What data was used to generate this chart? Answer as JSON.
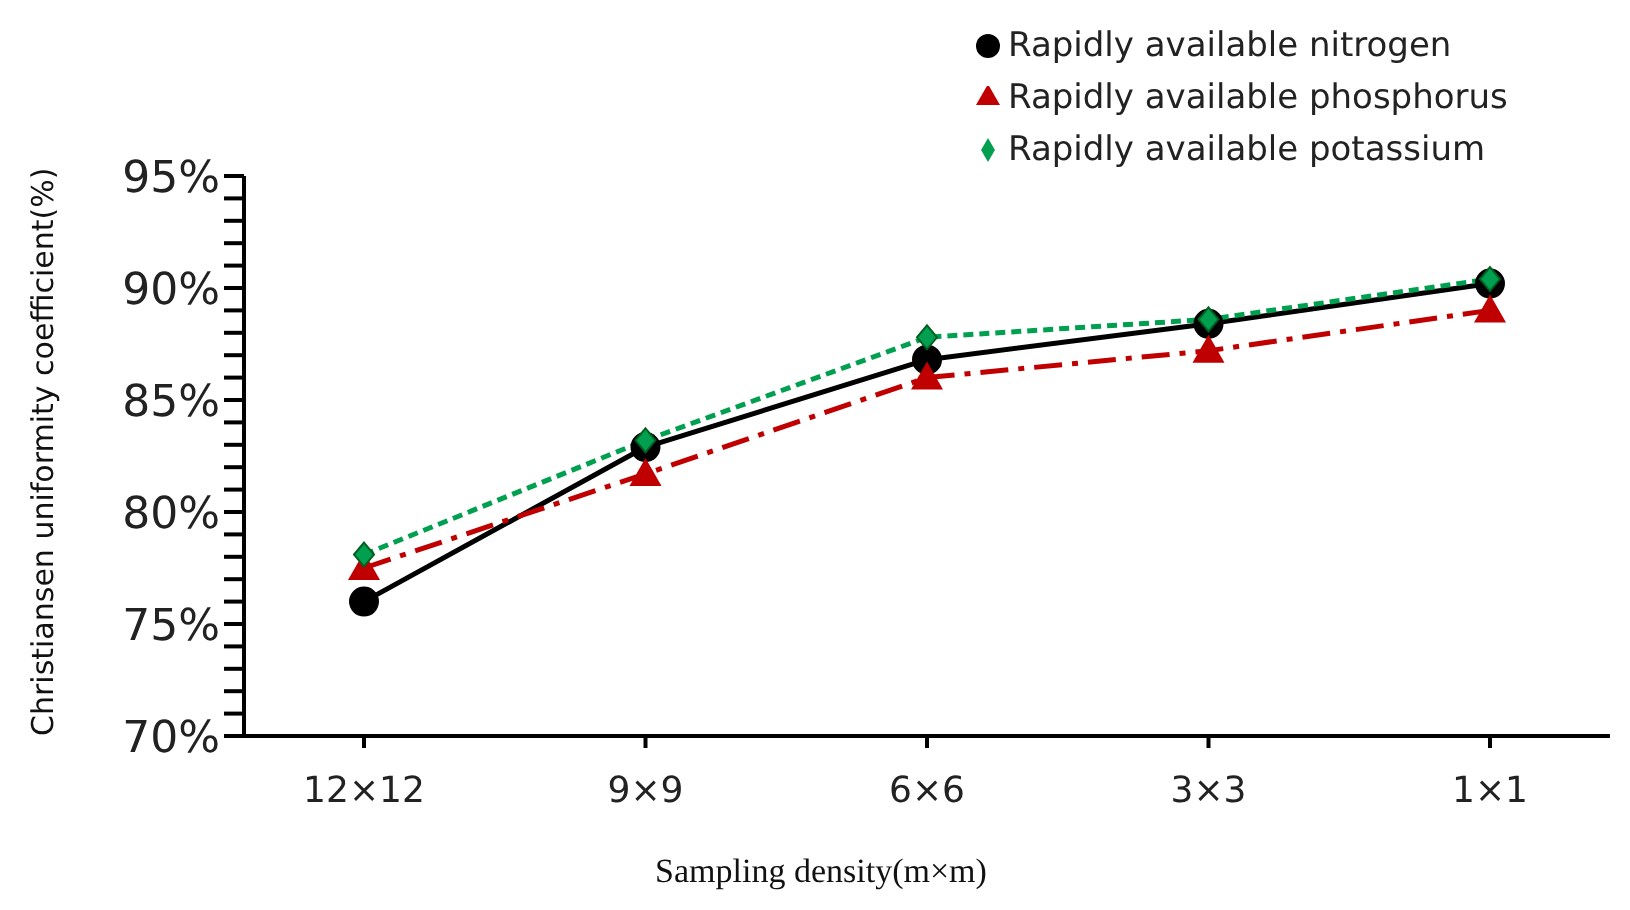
{
  "chart_data": {
    "type": "line",
    "xlabel": "Sampling density(m×m)",
    "ylabel": "Christiansen uniformity coefficient(%)",
    "categories": [
      "12×12",
      "9×9",
      "6×6",
      "3×3",
      "1×1"
    ],
    "series": [
      {
        "name": "Rapidly available nitrogen",
        "color": "#000000",
        "values": [
          76.0,
          82.9,
          86.8,
          88.4,
          90.2
        ],
        "marker": "circle",
        "line_style": "solid"
      },
      {
        "name": "Rapidly available phosphorus",
        "color": "#c00000",
        "values": [
          77.5,
          81.7,
          86.0,
          87.2,
          89.0
        ],
        "marker": "triangle",
        "line_style": "dashed"
      },
      {
        "name": "Rapidly available potassium",
        "color": "#00a050",
        "values": [
          78.1,
          83.2,
          87.8,
          88.6,
          90.4
        ],
        "marker": "diamond",
        "line_style": "dotted"
      }
    ],
    "ylim": [
      70,
      95
    ],
    "yticks": [
      {
        "value": 70,
        "label": "70%"
      },
      {
        "value": 71,
        "label": null
      },
      {
        "value": 72,
        "label": null
      },
      {
        "value": 73,
        "label": null
      },
      {
        "value": 74,
        "label": null
      },
      {
        "value": 75,
        "label": "75%"
      },
      {
        "value": 76,
        "label": null
      },
      {
        "value": 77,
        "label": null
      },
      {
        "value": 78,
        "label": null
      },
      {
        "value": 79,
        "label": null
      },
      {
        "value": 80,
        "label": "80%"
      },
      {
        "value": 81,
        "label": null
      },
      {
        "value": 82,
        "label": null
      },
      {
        "value": 83,
        "label": null
      },
      {
        "value": 84,
        "label": null
      },
      {
        "value": 85,
        "label": "85%"
      },
      {
        "value": 86,
        "label": null
      },
      {
        "value": 87,
        "label": null
      },
      {
        "value": 88,
        "label": null
      },
      {
        "value": 89,
        "label": null
      },
      {
        "value": 90,
        "label": "90%"
      },
      {
        "value": 91,
        "label": null
      },
      {
        "value": 92,
        "label": null
      },
      {
        "value": 93,
        "label": null
      },
      {
        "value": 94,
        "label": null
      },
      {
        "value": 95,
        "label": "95%"
      }
    ],
    "grid": false,
    "legend": "top right"
  }
}
